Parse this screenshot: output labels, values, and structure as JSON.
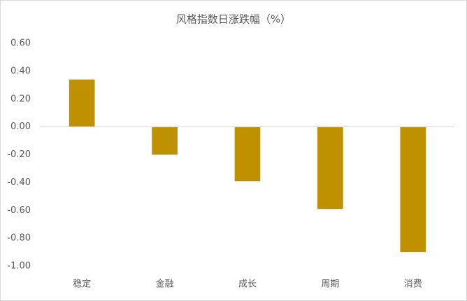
{
  "chart_data": {
    "type": "bar",
    "title": "风格指数日涨跌幅（%）",
    "categories": [
      "稳定",
      "金融",
      "成长",
      "周期",
      "消费"
    ],
    "values": [
      0.34,
      -0.2,
      -0.39,
      -0.59,
      -0.9
    ],
    "color": "#bf9000",
    "ylim": [
      -1,
      0.6
    ],
    "yticks": [
      {
        "value": 0.6,
        "label": "0.60"
      },
      {
        "value": 0.4,
        "label": "0.40"
      },
      {
        "value": 0.2,
        "label": "0.20"
      },
      {
        "value": 0,
        "label": "0.00"
      },
      {
        "value": -0.2,
        "label": "-0.20"
      },
      {
        "value": -0.4,
        "label": "-0.40"
      },
      {
        "value": -0.6,
        "label": "-0.60"
      },
      {
        "value": -0.8,
        "label": "-0.80"
      },
      {
        "value": -1,
        "label": "-1.00"
      }
    ],
    "grid": false
  }
}
